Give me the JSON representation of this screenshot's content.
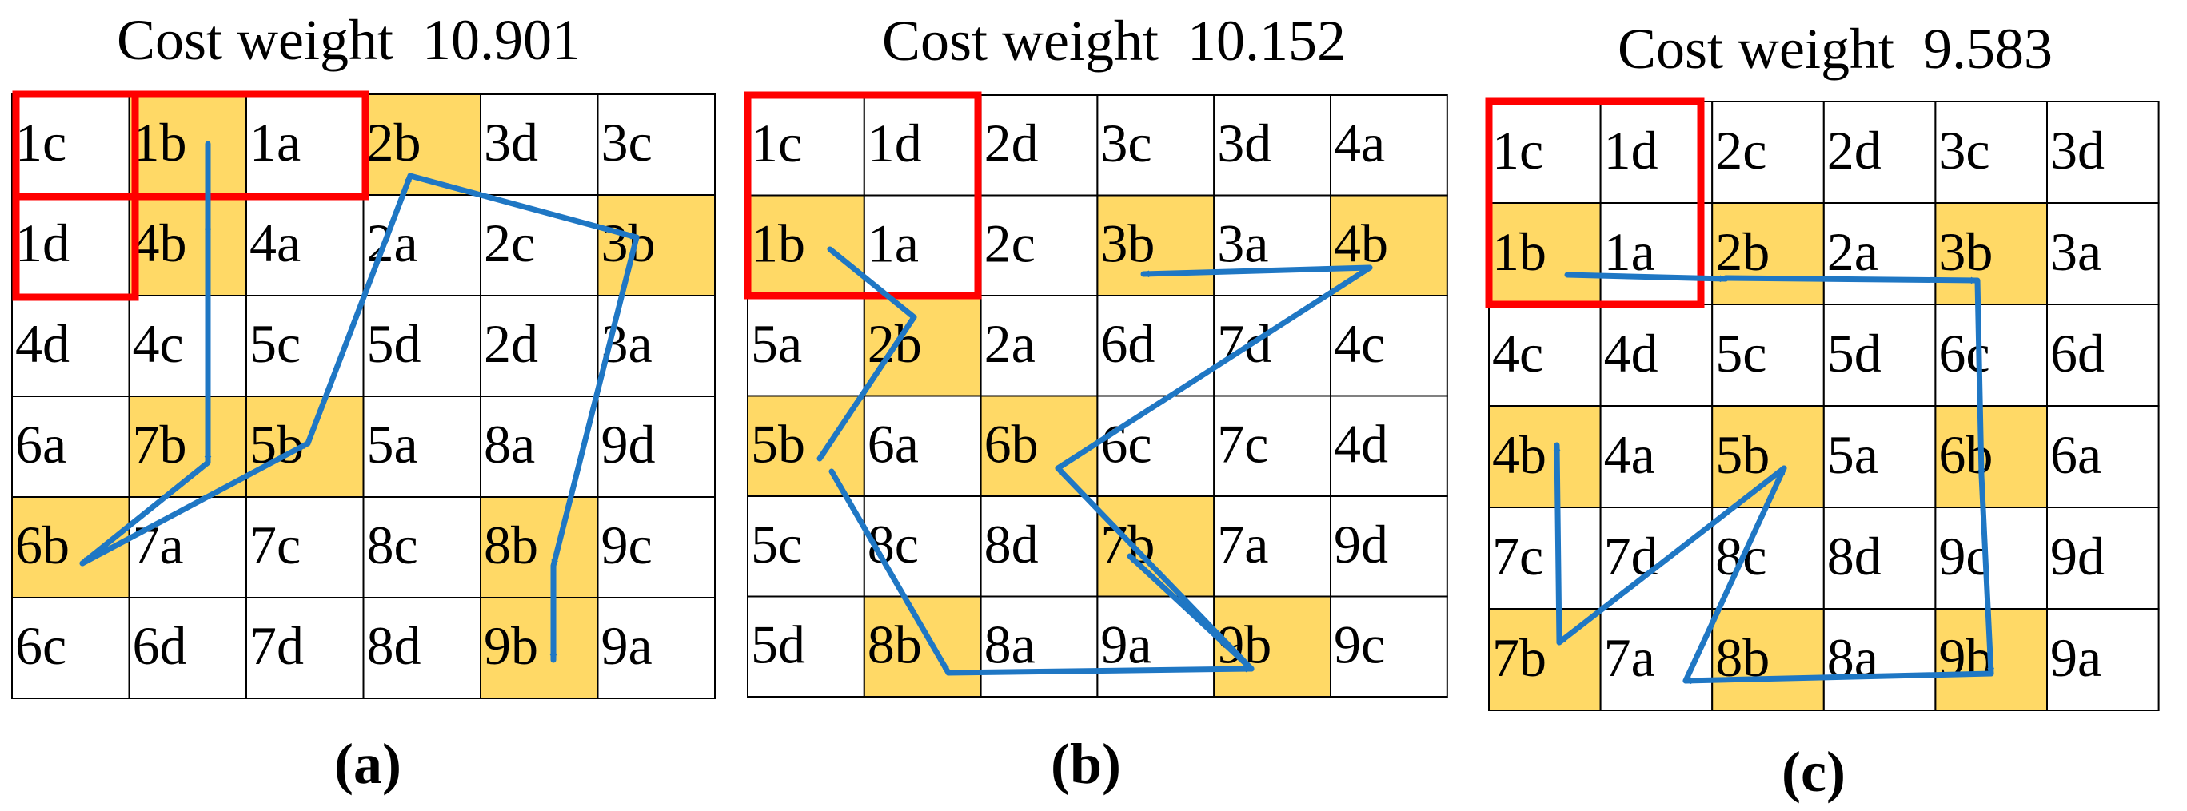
{
  "colors": {
    "highlight": "#FFD966",
    "arrow": "#1F77C4",
    "region": "#FF0000",
    "grid": "#000000"
  },
  "panels": [
    {
      "title": "Cost weight  10.901",
      "caption": "(a)",
      "grid": [
        [
          "1c",
          "1b",
          "1a",
          "2b",
          "3d",
          "3c"
        ],
        [
          "1d",
          "4b",
          "4a",
          "2a",
          "2c",
          "3b"
        ],
        [
          "4d",
          "4c",
          "5c",
          "5d",
          "2d",
          "3a"
        ],
        [
          "6a",
          "7b",
          "5b",
          "5a",
          "8a",
          "9d"
        ],
        [
          "6b",
          "7a",
          "7c",
          "8c",
          "8b",
          "9c"
        ],
        [
          "6c",
          "6d",
          "7d",
          "8d",
          "9b",
          "9a"
        ]
      ],
      "highlighted": [
        [
          0,
          1
        ],
        [
          0,
          3
        ],
        [
          1,
          1
        ],
        [
          1,
          5
        ],
        [
          3,
          1
        ],
        [
          3,
          2
        ],
        [
          4,
          0
        ],
        [
          4,
          4
        ],
        [
          5,
          4
        ]
      ]
    },
    {
      "title": "Cost weight  10.152",
      "caption": "(b)",
      "grid": [
        [
          "1c",
          "1d",
          "2d",
          "3c",
          "3d",
          "4a"
        ],
        [
          "1b",
          "1a",
          "2c",
          "3b",
          "3a",
          "4b"
        ],
        [
          "5a",
          "2b",
          "2a",
          "6d",
          "7d",
          "4c"
        ],
        [
          "5b",
          "6a",
          "6b",
          "6c",
          "7c",
          "4d"
        ],
        [
          "5c",
          "8c",
          "8d",
          "7b",
          "7a",
          "9d"
        ],
        [
          "5d",
          "8b",
          "8a",
          "9a",
          "9b",
          "9c"
        ]
      ],
      "highlighted": [
        [
          1,
          0
        ],
        [
          1,
          3
        ],
        [
          1,
          5
        ],
        [
          2,
          1
        ],
        [
          3,
          0
        ],
        [
          3,
          2
        ],
        [
          4,
          3
        ],
        [
          5,
          1
        ],
        [
          5,
          4
        ]
      ]
    },
    {
      "title": "Cost weight  9.583",
      "caption": "(c)",
      "grid": [
        [
          "1c",
          "1d",
          "2c",
          "2d",
          "3c",
          "3d"
        ],
        [
          "1b",
          "1a",
          "2b",
          "2a",
          "3b",
          "3a"
        ],
        [
          "4c",
          "4d",
          "5c",
          "5d",
          "6c",
          "6d"
        ],
        [
          "4b",
          "4a",
          "5b",
          "5a",
          "6b",
          "6a"
        ],
        [
          "7c",
          "7d",
          "8c",
          "8d",
          "9c",
          "9d"
        ],
        [
          "7b",
          "7a",
          "8b",
          "8a",
          "9b",
          "9a"
        ]
      ],
      "highlighted": [
        [
          1,
          0
        ],
        [
          1,
          2
        ],
        [
          1,
          4
        ],
        [
          3,
          0
        ],
        [
          3,
          2
        ],
        [
          3,
          4
        ],
        [
          5,
          0
        ],
        [
          5,
          2
        ],
        [
          5,
          4
        ]
      ]
    }
  ]
}
